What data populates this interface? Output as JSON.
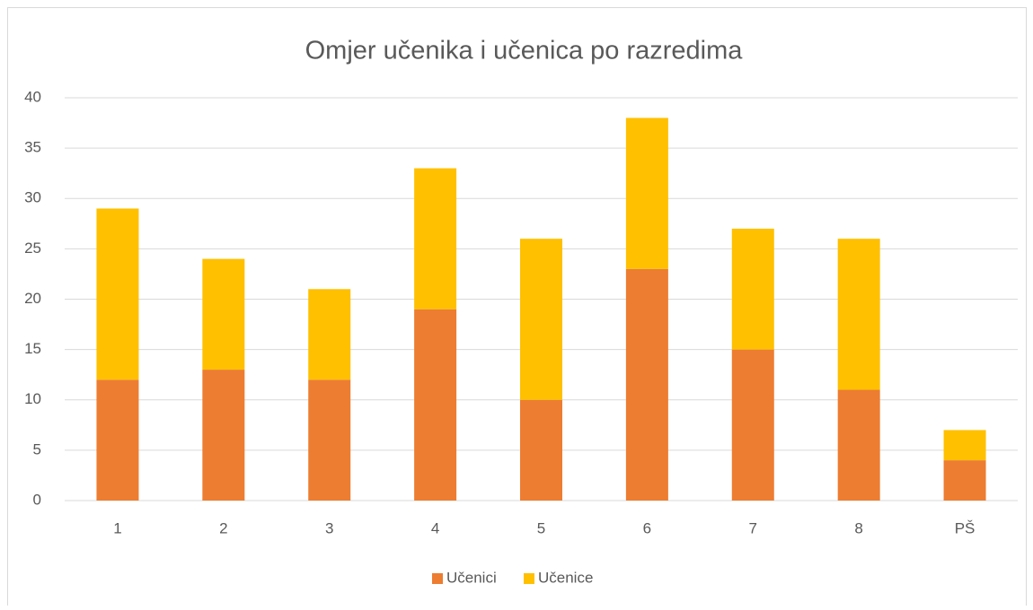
{
  "chart_data": {
    "type": "bar",
    "stacked": true,
    "title": "Omjer učenika i učenica po razredima",
    "categories": [
      "1",
      "2",
      "3",
      "4",
      "5",
      "6",
      "7",
      "8",
      "PŠ"
    ],
    "series": [
      {
        "name": "Učenici",
        "color": "#ed7d31",
        "values": [
          12,
          13,
          12,
          19,
          10,
          23,
          15,
          11,
          4
        ]
      },
      {
        "name": "Učenice",
        "color": "#ffc000",
        "values": [
          17,
          11,
          9,
          14,
          16,
          15,
          12,
          15,
          3
        ]
      }
    ],
    "ylim": [
      0,
      40
    ],
    "yticks": [
      0,
      5,
      10,
      15,
      20,
      25,
      30,
      35,
      40
    ],
    "grid": true,
    "legend": "bottom"
  }
}
